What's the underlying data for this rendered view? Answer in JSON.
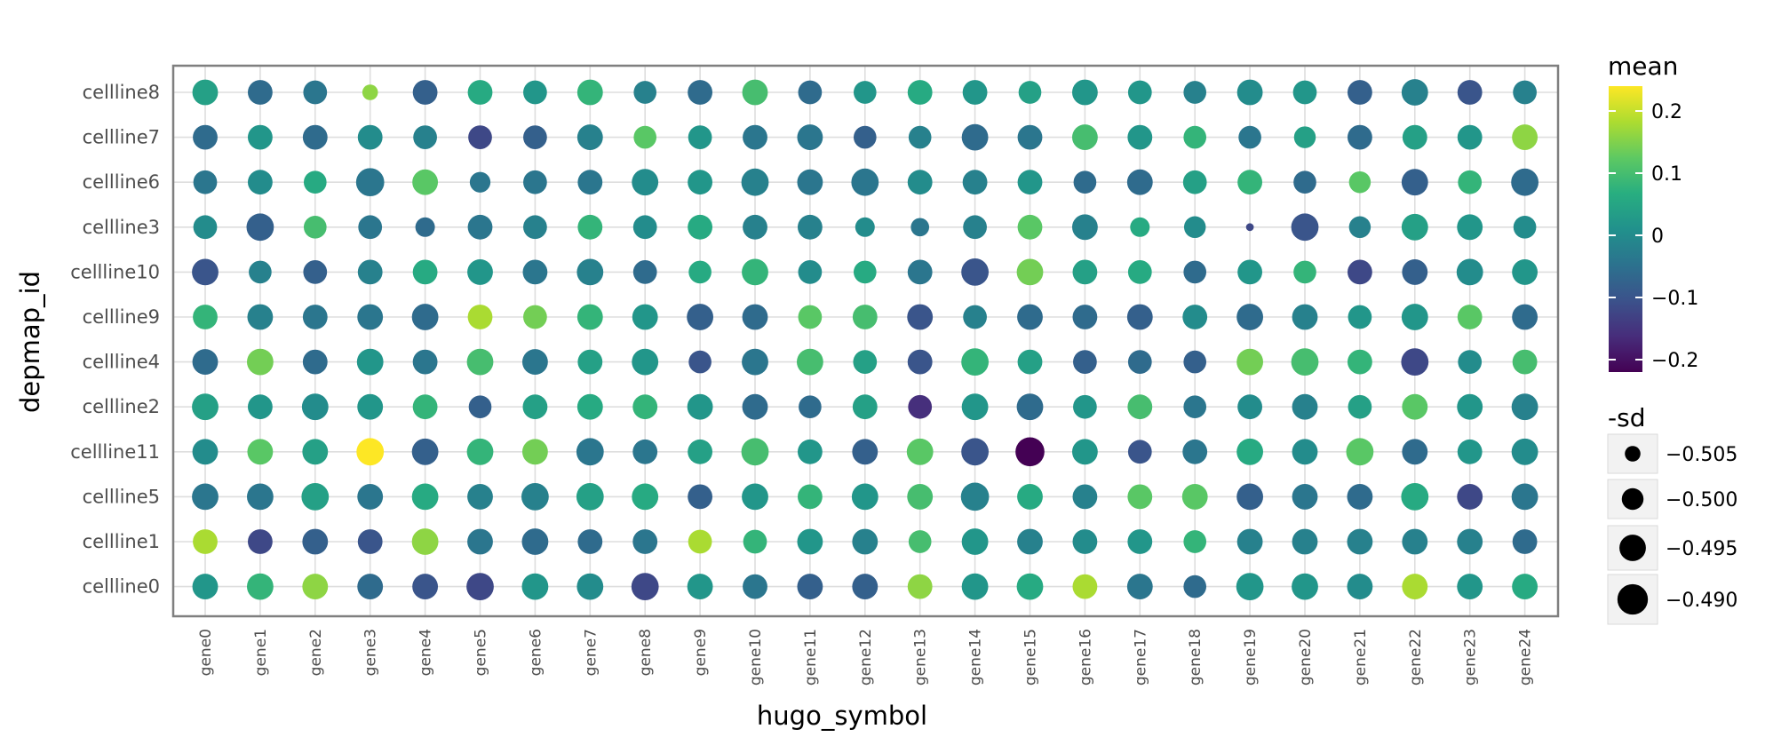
{
  "chart_data": {
    "type": "scatter",
    "subtype": "dot-plot",
    "xlabel": "hugo_symbol",
    "ylabel": "depmap_id",
    "x_categories": [
      "gene0",
      "gene1",
      "gene2",
      "gene3",
      "gene4",
      "gene5",
      "gene6",
      "gene7",
      "gene8",
      "gene9",
      "gene10",
      "gene11",
      "gene12",
      "gene13",
      "gene14",
      "gene15",
      "gene16",
      "gene17",
      "gene18",
      "gene19",
      "gene20",
      "gene21",
      "gene22",
      "gene23",
      "gene24"
    ],
    "y_categories": [
      "cellline8",
      "cellline7",
      "cellline6",
      "cellline3",
      "cellline10",
      "cellline9",
      "cellline4",
      "cellline2",
      "cellline11",
      "cellline5",
      "cellline1",
      "cellline0"
    ],
    "color_variable": "mean",
    "size_variable": "-sd",
    "color_scale": {
      "palette": "viridis",
      "range": [
        -0.22,
        0.24
      ],
      "ticks": [
        0.2,
        0.1,
        0,
        -0.1,
        -0.2
      ],
      "tick_labels": [
        "0.2",
        "0.1",
        "0",
        "−0.1",
        "−0.2"
      ]
    },
    "size_scale": {
      "range": [
        -0.5095,
        -0.488
      ],
      "ticks": [
        -0.505,
        -0.5,
        -0.495,
        -0.49
      ],
      "tick_labels": [
        "−0.505",
        "−0.500",
        "−0.495",
        "−0.490"
      ]
    },
    "grid": true,
    "legend_position": "right",
    "mean": [
      [
        0.04,
        -0.06,
        -0.04,
        0.16,
        -0.08,
        0.06,
        0.02,
        0.08,
        -0.02,
        -0.06,
        0.1,
        -0.06,
        0.02,
        0.06,
        0.02,
        0.04,
        0.02,
        0.02,
        -0.02,
        0.0,
        0.02,
        -0.08,
        -0.02,
        -0.1,
        -0.02
      ],
      [
        -0.06,
        0.02,
        -0.06,
        0.0,
        -0.02,
        -0.12,
        -0.08,
        -0.02,
        0.12,
        0.02,
        -0.04,
        -0.04,
        -0.08,
        -0.02,
        -0.06,
        -0.04,
        0.1,
        0.02,
        0.08,
        -0.04,
        0.04,
        -0.06,
        0.04,
        0.02,
        0.16
      ],
      [
        -0.04,
        0.0,
        0.06,
        -0.04,
        0.12,
        -0.04,
        -0.04,
        -0.04,
        0.0,
        0.02,
        -0.02,
        -0.04,
        -0.04,
        0.0,
        -0.02,
        0.02,
        -0.06,
        -0.06,
        0.04,
        0.08,
        -0.06,
        0.12,
        -0.08,
        0.08,
        -0.06
      ],
      [
        0.0,
        -0.08,
        0.1,
        -0.04,
        -0.06,
        -0.04,
        -0.02,
        0.08,
        0.0,
        0.06,
        -0.02,
        -0.02,
        0.0,
        -0.04,
        -0.02,
        0.12,
        -0.02,
        0.06,
        0.0,
        -0.12,
        -0.1,
        -0.02,
        0.04,
        0.02,
        0.0
      ],
      [
        -0.1,
        -0.02,
        -0.08,
        -0.02,
        0.06,
        0.02,
        -0.04,
        -0.02,
        -0.06,
        0.06,
        0.08,
        0.0,
        0.06,
        -0.04,
        -0.1,
        0.14,
        0.04,
        0.06,
        -0.06,
        0.02,
        0.08,
        -0.12,
        -0.08,
        0.0,
        0.02
      ],
      [
        0.08,
        -0.02,
        -0.04,
        -0.04,
        -0.06,
        0.18,
        0.14,
        0.08,
        0.02,
        -0.08,
        -0.06,
        0.12,
        0.1,
        -0.1,
        -0.02,
        -0.06,
        -0.06,
        -0.08,
        0.0,
        -0.06,
        -0.02,
        0.02,
        0.02,
        0.12,
        -0.06
      ],
      [
        -0.06,
        0.14,
        -0.06,
        0.02,
        -0.04,
        0.1,
        -0.04,
        0.04,
        0.02,
        -0.1,
        -0.04,
        0.1,
        0.04,
        -0.1,
        0.08,
        0.04,
        -0.08,
        -0.06,
        -0.08,
        0.14,
        0.1,
        0.08,
        -0.12,
        0.0,
        0.1
      ],
      [
        0.04,
        0.02,
        0.0,
        0.02,
        0.08,
        -0.08,
        0.04,
        0.06,
        0.08,
        0.02,
        -0.06,
        -0.06,
        0.04,
        -0.16,
        0.02,
        -0.06,
        0.02,
        0.1,
        -0.04,
        0.0,
        -0.02,
        0.04,
        0.12,
        0.02,
        -0.02
      ],
      [
        0.0,
        0.12,
        0.04,
        0.24,
        -0.08,
        0.08,
        0.14,
        -0.04,
        -0.04,
        0.04,
        0.1,
        0.02,
        -0.08,
        0.12,
        -0.1,
        -0.23,
        0.02,
        -0.1,
        -0.04,
        0.06,
        0.0,
        0.12,
        -0.06,
        0.02,
        0.0
      ],
      [
        -0.04,
        -0.04,
        0.04,
        -0.04,
        0.06,
        -0.02,
        -0.02,
        0.04,
        0.06,
        -0.08,
        0.02,
        0.08,
        0.02,
        0.1,
        -0.02,
        0.06,
        -0.02,
        0.12,
        0.12,
        -0.08,
        -0.04,
        -0.06,
        0.06,
        -0.12,
        -0.04
      ],
      [
        0.18,
        -0.12,
        -0.08,
        -0.1,
        0.16,
        -0.04,
        -0.06,
        -0.06,
        -0.04,
        0.18,
        0.08,
        0.02,
        -0.02,
        0.1,
        0.02,
        -0.02,
        0.0,
        0.02,
        0.08,
        -0.02,
        -0.02,
        -0.02,
        -0.02,
        -0.02,
        -0.06
      ],
      [
        0.02,
        0.08,
        0.16,
        -0.06,
        -0.1,
        -0.12,
        0.02,
        0.0,
        -0.12,
        0.02,
        -0.04,
        -0.08,
        -0.08,
        0.16,
        0.02,
        0.06,
        0.18,
        -0.04,
        -0.06,
        0.02,
        0.02,
        0.0,
        0.18,
        0.02,
        0.06
      ]
    ],
    "neg_sd": [
      [
        -0.496,
        -0.497,
        -0.498,
        -0.505,
        -0.497,
        -0.497,
        -0.498,
        -0.496,
        -0.499,
        -0.497,
        -0.496,
        -0.498,
        -0.499,
        -0.497,
        -0.497,
        -0.499,
        -0.496,
        -0.498,
        -0.499,
        -0.496,
        -0.498,
        -0.497,
        -0.495,
        -0.497,
        -0.498
      ],
      [
        -0.497,
        -0.497,
        -0.497,
        -0.497,
        -0.498,
        -0.498,
        -0.498,
        -0.496,
        -0.499,
        -0.498,
        -0.497,
        -0.496,
        -0.499,
        -0.499,
        -0.495,
        -0.497,
        -0.496,
        -0.497,
        -0.499,
        -0.499,
        -0.5,
        -0.497,
        -0.497,
        -0.497,
        -0.496
      ],
      [
        -0.498,
        -0.497,
        -0.499,
        -0.493,
        -0.496,
        -0.501,
        -0.498,
        -0.497,
        -0.495,
        -0.497,
        -0.494,
        -0.496,
        -0.494,
        -0.497,
        -0.497,
        -0.497,
        -0.499,
        -0.496,
        -0.498,
        -0.497,
        -0.499,
        -0.5,
        -0.495,
        -0.498,
        -0.494
      ],
      [
        -0.498,
        -0.494,
        -0.499,
        -0.498,
        -0.502,
        -0.497,
        -0.498,
        -0.497,
        -0.498,
        -0.497,
        -0.497,
        -0.497,
        -0.502,
        -0.503,
        -0.498,
        -0.497,
        -0.496,
        -0.502,
        -0.5,
        -0.509,
        -0.494,
        -0.5,
        -0.495,
        -0.496,
        -0.499
      ],
      [
        -0.495,
        -0.499,
        -0.498,
        -0.497,
        -0.497,
        -0.496,
        -0.497,
        -0.495,
        -0.498,
        -0.499,
        -0.495,
        -0.498,
        -0.499,
        -0.497,
        -0.494,
        -0.495,
        -0.497,
        -0.498,
        -0.499,
        -0.497,
        -0.499,
        -0.497,
        -0.496,
        -0.495,
        -0.496
      ],
      [
        -0.497,
        -0.496,
        -0.497,
        -0.496,
        -0.495,
        -0.497,
        -0.498,
        -0.496,
        -0.496,
        -0.495,
        -0.496,
        -0.498,
        -0.497,
        -0.496,
        -0.498,
        -0.496,
        -0.497,
        -0.496,
        -0.497,
        -0.495,
        -0.496,
        -0.498,
        -0.495,
        -0.497,
        -0.496
      ],
      [
        -0.496,
        -0.495,
        -0.497,
        -0.495,
        -0.497,
        -0.495,
        -0.496,
        -0.497,
        -0.495,
        -0.499,
        -0.495,
        -0.495,
        -0.498,
        -0.497,
        -0.494,
        -0.497,
        -0.498,
        -0.498,
        -0.499,
        -0.495,
        -0.494,
        -0.497,
        -0.494,
        -0.498,
        -0.497
      ],
      [
        -0.495,
        -0.497,
        -0.495,
        -0.496,
        -0.497,
        -0.499,
        -0.497,
        -0.496,
        -0.497,
        -0.496,
        -0.496,
        -0.499,
        -0.497,
        -0.498,
        -0.495,
        -0.495,
        -0.498,
        -0.497,
        -0.499,
        -0.497,
        -0.496,
        -0.498,
        -0.496,
        -0.496,
        -0.495
      ],
      [
        -0.496,
        -0.496,
        -0.496,
        -0.494,
        -0.495,
        -0.495,
        -0.496,
        -0.494,
        -0.497,
        -0.497,
        -0.494,
        -0.497,
        -0.496,
        -0.495,
        -0.494,
        -0.492,
        -0.496,
        -0.498,
        -0.497,
        -0.495,
        -0.496,
        -0.494,
        -0.496,
        -0.497,
        -0.495
      ],
      [
        -0.495,
        -0.495,
        -0.494,
        -0.496,
        -0.495,
        -0.496,
        -0.494,
        -0.494,
        -0.495,
        -0.497,
        -0.495,
        -0.497,
        -0.495,
        -0.496,
        -0.493,
        -0.496,
        -0.497,
        -0.497,
        -0.496,
        -0.495,
        -0.496,
        -0.496,
        -0.494,
        -0.496,
        -0.495
      ],
      [
        -0.497,
        -0.497,
        -0.496,
        -0.497,
        -0.495,
        -0.496,
        -0.495,
        -0.497,
        -0.497,
        -0.498,
        -0.498,
        -0.496,
        -0.496,
        -0.499,
        -0.495,
        -0.496,
        -0.497,
        -0.497,
        -0.499,
        -0.496,
        -0.496,
        -0.496,
        -0.496,
        -0.496,
        -0.497
      ],
      [
        -0.496,
        -0.495,
        -0.496,
        -0.496,
        -0.496,
        -0.494,
        -0.495,
        -0.495,
        -0.494,
        -0.496,
        -0.497,
        -0.496,
        -0.496,
        -0.497,
        -0.495,
        -0.495,
        -0.497,
        -0.496,
        -0.499,
        -0.494,
        -0.495,
        -0.496,
        -0.496,
        -0.496,
        -0.496
      ]
    ]
  }
}
